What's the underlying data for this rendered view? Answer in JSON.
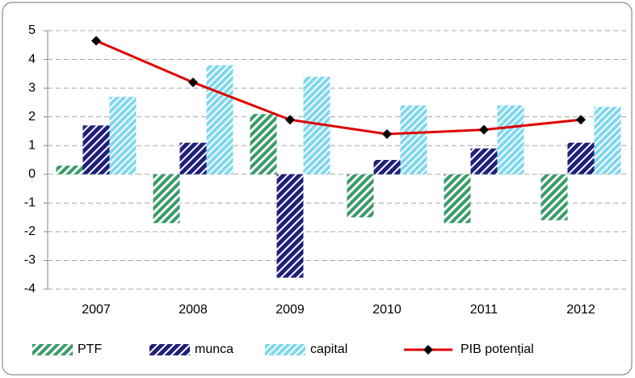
{
  "chart_data": {
    "type": "bar",
    "categories": [
      "2007",
      "2008",
      "2009",
      "2010",
      "2011",
      "2012"
    ],
    "series": [
      {
        "name": "PTF",
        "color": "#3a9a6a",
        "values": [
          0.3,
          -1.7,
          2.1,
          -1.5,
          -1.7,
          -1.6
        ]
      },
      {
        "name": "munca",
        "color": "#20207a",
        "values": [
          1.7,
          1.1,
          -3.6,
          0.5,
          0.9,
          1.1
        ]
      },
      {
        "name": "capital",
        "color": "#7ed8ee",
        "values": [
          2.7,
          3.8,
          3.4,
          2.4,
          2.4,
          2.35
        ]
      },
      {
        "name": "PIB potențial",
        "color": "#e00000",
        "type": "line",
        "values": [
          4.65,
          3.2,
          1.9,
          1.4,
          1.55,
          1.9
        ]
      }
    ],
    "ylim": [
      -4,
      5
    ],
    "yticks": [
      -4,
      -3,
      -2,
      -1,
      0,
      1,
      2,
      3,
      4,
      5
    ],
    "grid": true,
    "legend": "bottom"
  }
}
